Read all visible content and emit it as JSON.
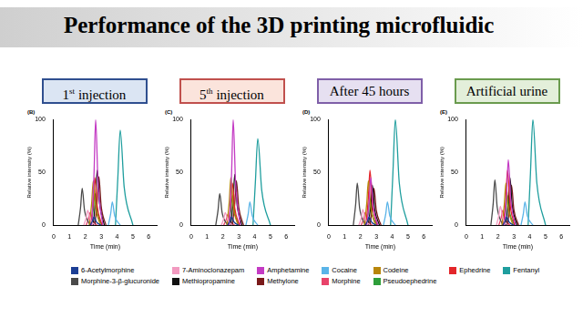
{
  "header": {
    "title": "Performance of the 3D printing microfluidic"
  },
  "chart_data": [
    {
      "type": "line",
      "title": "1st injection",
      "subtitle": "(B)",
      "x_label": "Time (min)",
      "y_label": "Relative intensity (%)",
      "xlim": [
        0,
        6.5
      ],
      "xticks": [
        0,
        1,
        2,
        3,
        4,
        5,
        6
      ],
      "ylim": [
        0,
        100
      ],
      "yticks": [
        0,
        50,
        100
      ],
      "grid": false,
      "legend": "bottom",
      "series": [
        {
          "name": "6-Acetylmorphine",
          "color": "#1c3f95",
          "x": [
            2.3,
            2.45,
            2.55,
            2.7,
            3.0
          ],
          "values": [
            0,
            4,
            8,
            3,
            0
          ]
        },
        {
          "name": "7-Aminoclonazepam",
          "color": "#f29ac0",
          "x": [
            1.9,
            2.05,
            2.15,
            2.3,
            2.6
          ],
          "values": [
            0,
            7,
            14,
            6,
            0
          ]
        },
        {
          "name": "Amphetamine",
          "color": "#c43bc4",
          "x": [
            2.4,
            2.55,
            2.65,
            2.8,
            3.1
          ],
          "values": [
            0,
            50,
            100,
            40,
            0
          ]
        },
        {
          "name": "Cocaine",
          "color": "#5ab4e8",
          "x": [
            3.45,
            3.6,
            3.7,
            3.85,
            4.2
          ],
          "values": [
            0,
            11,
            22,
            9,
            0
          ]
        },
        {
          "name": "Codeine",
          "color": "#b8860b",
          "x": [
            2.25,
            2.4,
            2.5,
            2.65,
            2.95
          ],
          "values": [
            0,
            21,
            42,
            17,
            0
          ]
        },
        {
          "name": "Ephedrine",
          "color": "#e3262a",
          "x": [
            2.35,
            2.5,
            2.6,
            2.75,
            3.05
          ],
          "values": [
            0,
            22,
            45,
            18,
            0
          ]
        },
        {
          "name": "Fentanyl",
          "color": "#1f9e9e",
          "x": [
            3.9,
            4.05,
            4.2,
            4.45,
            5.0
          ],
          "values": [
            0,
            45,
            90,
            36,
            0
          ]
        },
        {
          "name": "Morphine-3-β-glucuronide",
          "color": "#4a4a4a",
          "x": [
            1.55,
            1.7,
            1.8,
            1.95,
            2.3
          ],
          "values": [
            0,
            17,
            35,
            14,
            0
          ]
        },
        {
          "name": "Methiopropamine",
          "color": "#111111",
          "x": [
            2.5,
            2.65,
            2.75,
            2.9,
            3.2
          ],
          "values": [
            0,
            26,
            52,
            21,
            0
          ]
        },
        {
          "name": "Methylone",
          "color": "#7a1a1a",
          "x": [
            2.6,
            2.75,
            2.85,
            3.0,
            3.3
          ],
          "values": [
            0,
            23,
            46,
            18,
            0
          ]
        },
        {
          "name": "Morphine",
          "color": "#e8436a",
          "x": [
            2.05,
            2.2,
            2.3,
            2.45,
            2.75
          ],
          "values": [
            0,
            6,
            12,
            5,
            0
          ]
        },
        {
          "name": "Pseudoephedrine",
          "color": "#2e9e3a",
          "x": [
            2.35,
            2.5,
            2.6,
            2.75,
            3.05
          ],
          "values": [
            0,
            15,
            30,
            12,
            0
          ]
        }
      ]
    },
    {
      "type": "line",
      "title": "5th injection",
      "subtitle": "(C)",
      "x_label": "Time (min)",
      "y_label": "Relative intensity (%)",
      "xlim": [
        0,
        6.5
      ],
      "xticks": [
        0,
        1,
        2,
        3,
        4,
        5,
        6
      ],
      "ylim": [
        0,
        100
      ],
      "yticks": [
        0,
        50,
        100
      ],
      "grid": false,
      "series": [
        {
          "name": "6-Acetylmorphine",
          "color": "#1c3f95",
          "x": [
            2.3,
            2.45,
            2.55,
            2.7,
            3.0
          ],
          "values": [
            0,
            4,
            8,
            3,
            0
          ]
        },
        {
          "name": "7-Aminoclonazepam",
          "color": "#f29ac0",
          "x": [
            1.9,
            2.05,
            2.15,
            2.3,
            2.6
          ],
          "values": [
            0,
            6,
            12,
            5,
            0
          ]
        },
        {
          "name": "Amphetamine",
          "color": "#c43bc4",
          "x": [
            2.4,
            2.55,
            2.65,
            2.8,
            3.1
          ],
          "values": [
            0,
            50,
            100,
            40,
            0
          ]
        },
        {
          "name": "Cocaine",
          "color": "#5ab4e8",
          "x": [
            3.45,
            3.6,
            3.7,
            3.85,
            4.2
          ],
          "values": [
            0,
            11,
            22,
            9,
            0
          ]
        },
        {
          "name": "Codeine",
          "color": "#b8860b",
          "x": [
            2.25,
            2.4,
            2.5,
            2.65,
            2.95
          ],
          "values": [
            0,
            22,
            45,
            18,
            0
          ]
        },
        {
          "name": "Ephedrine",
          "color": "#e3262a",
          "x": [
            2.35,
            2.5,
            2.6,
            2.75,
            3.05
          ],
          "values": [
            0,
            20,
            40,
            16,
            0
          ]
        },
        {
          "name": "Fentanyl",
          "color": "#1f9e9e",
          "x": [
            3.9,
            4.05,
            4.2,
            4.45,
            5.0
          ],
          "values": [
            0,
            41,
            82,
            33,
            0
          ]
        },
        {
          "name": "Morphine-3-β-glucuronide",
          "color": "#4a4a4a",
          "x": [
            1.55,
            1.7,
            1.8,
            1.95,
            2.3
          ],
          "values": [
            0,
            15,
            30,
            12,
            0
          ]
        },
        {
          "name": "Methiopropamine",
          "color": "#111111",
          "x": [
            2.5,
            2.65,
            2.75,
            2.9,
            3.2
          ],
          "values": [
            0,
            24,
            48,
            19,
            0
          ]
        },
        {
          "name": "Methylone",
          "color": "#7a1a1a",
          "x": [
            2.6,
            2.75,
            2.85,
            3.0,
            3.3
          ],
          "values": [
            0,
            21,
            42,
            17,
            0
          ]
        },
        {
          "name": "Morphine",
          "color": "#e8436a",
          "x": [
            2.05,
            2.2,
            2.3,
            2.45,
            2.75
          ],
          "values": [
            0,
            5,
            10,
            4,
            0
          ]
        },
        {
          "name": "Pseudoephedrine",
          "color": "#2e9e3a",
          "x": [
            2.35,
            2.5,
            2.6,
            2.75,
            3.05
          ],
          "values": [
            0,
            14,
            28,
            11,
            0
          ]
        }
      ]
    },
    {
      "type": "line",
      "title": "After 45 hours",
      "subtitle": "(D)",
      "x_label": "Time (min)",
      "y_label": "Relative intensity (%)",
      "xlim": [
        0,
        6.5
      ],
      "xticks": [
        0,
        1,
        2,
        3,
        4,
        5,
        6
      ],
      "ylim": [
        0,
        100
      ],
      "yticks": [
        0,
        50,
        100
      ],
      "grid": false,
      "series": [
        {
          "name": "6-Acetylmorphine",
          "color": "#1c3f95",
          "x": [
            2.3,
            2.45,
            2.55,
            2.7,
            3.0
          ],
          "values": [
            0,
            4,
            8,
            3,
            0
          ]
        },
        {
          "name": "7-Aminoclonazepam",
          "color": "#f29ac0",
          "x": [
            1.9,
            2.05,
            2.15,
            2.3,
            2.6
          ],
          "values": [
            0,
            7,
            15,
            6,
            0
          ]
        },
        {
          "name": "Amphetamine",
          "color": "#c43bc4",
          "x": [
            2.4,
            2.55,
            2.65,
            2.8,
            3.1
          ],
          "values": [
            0,
            22,
            45,
            18,
            0
          ]
        },
        {
          "name": "Cocaine",
          "color": "#5ab4e8",
          "x": [
            3.45,
            3.6,
            3.7,
            3.85,
            4.2
          ],
          "values": [
            0,
            11,
            22,
            9,
            0
          ]
        },
        {
          "name": "Codeine",
          "color": "#b8860b",
          "x": [
            2.25,
            2.4,
            2.5,
            2.65,
            2.95
          ],
          "values": [
            0,
            21,
            42,
            17,
            0
          ]
        },
        {
          "name": "Ephedrine",
          "color": "#e3262a",
          "x": [
            2.35,
            2.5,
            2.6,
            2.75,
            3.05
          ],
          "values": [
            0,
            26,
            52,
            21,
            0
          ]
        },
        {
          "name": "Fentanyl",
          "color": "#1f9e9e",
          "x": [
            3.9,
            4.05,
            4.2,
            4.45,
            5.0
          ],
          "values": [
            0,
            50,
            100,
            40,
            0
          ]
        },
        {
          "name": "Morphine-3-β-glucuronide",
          "color": "#4a4a4a",
          "x": [
            1.55,
            1.7,
            1.8,
            1.95,
            2.3
          ],
          "values": [
            0,
            20,
            40,
            16,
            0
          ]
        },
        {
          "name": "Methiopropamine",
          "color": "#111111",
          "x": [
            2.5,
            2.65,
            2.75,
            2.9,
            3.2
          ],
          "values": [
            0,
            19,
            38,
            15,
            0
          ]
        },
        {
          "name": "Methylone",
          "color": "#7a1a1a",
          "x": [
            2.6,
            2.75,
            2.85,
            3.0,
            3.3
          ],
          "values": [
            0,
            17,
            35,
            14,
            0
          ]
        },
        {
          "name": "Morphine",
          "color": "#e8436a",
          "x": [
            2.05,
            2.2,
            2.3,
            2.45,
            2.75
          ],
          "values": [
            0,
            6,
            12,
            5,
            0
          ]
        },
        {
          "name": "Pseudoephedrine",
          "color": "#2e9e3a",
          "x": [
            2.35,
            2.5,
            2.6,
            2.75,
            3.05
          ],
          "values": [
            0,
            12,
            25,
            10,
            0
          ]
        }
      ]
    },
    {
      "type": "line",
      "title": "Artificial urine",
      "subtitle": "(E)",
      "x_label": "Time (min)",
      "y_label": "Relative intensity (%)",
      "xlim": [
        0,
        6.5
      ],
      "xticks": [
        0,
        1,
        2,
        3,
        4,
        5,
        6
      ],
      "ylim": [
        0,
        100
      ],
      "yticks": [
        0,
        50,
        100
      ],
      "grid": false,
      "series": [
        {
          "name": "6-Acetylmorphine",
          "color": "#1c3f95",
          "x": [
            2.3,
            2.45,
            2.55,
            2.7,
            3.0
          ],
          "values": [
            0,
            4,
            8,
            3,
            0
          ]
        },
        {
          "name": "7-Aminoclonazepam",
          "color": "#f29ac0",
          "x": [
            1.9,
            2.05,
            2.15,
            2.3,
            2.6
          ],
          "values": [
            0,
            9,
            18,
            7,
            0
          ]
        },
        {
          "name": "Amphetamine",
          "color": "#c43bc4",
          "x": [
            2.4,
            2.55,
            2.65,
            2.8,
            3.1
          ],
          "values": [
            0,
            31,
            62,
            25,
            0
          ]
        },
        {
          "name": "Cocaine",
          "color": "#5ab4e8",
          "x": [
            3.45,
            3.6,
            3.7,
            3.85,
            4.2
          ],
          "values": [
            0,
            11,
            22,
            9,
            0
          ]
        },
        {
          "name": "Codeine",
          "color": "#b8860b",
          "x": [
            2.25,
            2.4,
            2.5,
            2.65,
            2.95
          ],
          "values": [
            0,
            20,
            40,
            16,
            0
          ]
        },
        {
          "name": "Ephedrine",
          "color": "#e3262a",
          "x": [
            2.35,
            2.5,
            2.6,
            2.75,
            3.05
          ],
          "values": [
            0,
            26,
            52,
            21,
            0
          ]
        },
        {
          "name": "Fentanyl",
          "color": "#1f9e9e",
          "x": [
            3.9,
            4.05,
            4.2,
            4.45,
            5.0
          ],
          "values": [
            0,
            50,
            100,
            40,
            0
          ]
        },
        {
          "name": "Morphine-3-β-glucuronide",
          "color": "#4a4a4a",
          "x": [
            1.55,
            1.7,
            1.8,
            1.95,
            2.3
          ],
          "values": [
            0,
            21,
            43,
            17,
            0
          ]
        },
        {
          "name": "Methiopropamine",
          "color": "#111111",
          "x": [
            2.5,
            2.65,
            2.75,
            2.9,
            3.2
          ],
          "values": [
            0,
            22,
            45,
            18,
            0
          ]
        },
        {
          "name": "Methylone",
          "color": "#7a1a1a",
          "x": [
            2.6,
            2.75,
            2.85,
            3.0,
            3.3
          ],
          "values": [
            0,
            19,
            38,
            15,
            0
          ]
        },
        {
          "name": "Morphine",
          "color": "#e8436a",
          "x": [
            2.05,
            2.2,
            2.3,
            2.45,
            2.75
          ],
          "values": [
            0,
            7,
            14,
            6,
            0
          ]
        },
        {
          "name": "Pseudoephedrine",
          "color": "#2e9e3a",
          "x": [
            2.35,
            2.5,
            2.6,
            2.75,
            3.05
          ],
          "values": [
            0,
            14,
            28,
            11,
            0
          ]
        }
      ]
    }
  ]
}
